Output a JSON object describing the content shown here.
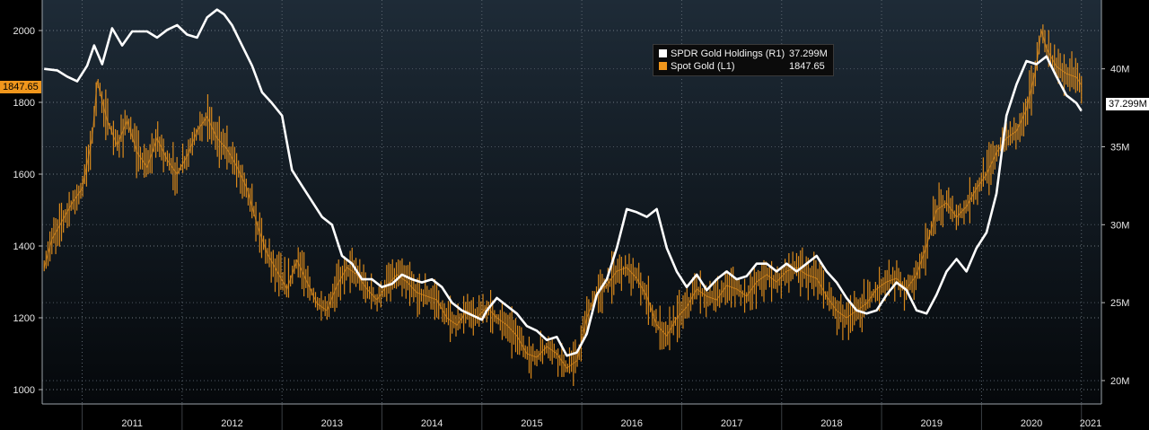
{
  "chart_data": {
    "type": "line",
    "x_range": [
      2010.6,
      2021.2
    ],
    "left_axis": {
      "series": "Spot Gold (L1)",
      "range": [
        960,
        2080
      ],
      "ticks": [
        "1000",
        "1200",
        "1400",
        "1600",
        "1800",
        "2000"
      ]
    },
    "right_axis": {
      "series": "SPDR Gold Holdings (R1)",
      "unit": "M",
      "range": [
        18.5,
        44.3
      ],
      "ticks": [
        "20M",
        "25M",
        "30M",
        "35M",
        "40M"
      ]
    },
    "x_ticks": [
      "2011",
      "2012",
      "2013",
      "2014",
      "2015",
      "2016",
      "2017",
      "2018",
      "2019",
      "2020",
      "2021"
    ],
    "grid": true,
    "legend_position": "top-center",
    "series": [
      {
        "name": "SPDR Gold Holdings (R1)",
        "color": "#ffffff",
        "axis": "right",
        "x": [
          2010.62,
          2010.75,
          2010.85,
          2010.95,
          2011.05,
          2011.12,
          2011.2,
          2011.3,
          2011.4,
          2011.5,
          2011.65,
          2011.75,
          2011.85,
          2011.95,
          2012.05,
          2012.15,
          2012.25,
          2012.35,
          2012.42,
          2012.5,
          2012.6,
          2012.7,
          2012.8,
          2012.9,
          2013.0,
          2013.1,
          2013.2,
          2013.3,
          2013.4,
          2013.5,
          2013.6,
          2013.7,
          2013.8,
          2013.9,
          2014.0,
          2014.1,
          2014.2,
          2014.3,
          2014.4,
          2014.5,
          2014.6,
          2014.7,
          2014.8,
          2014.9,
          2015.0,
          2015.05,
          2015.15,
          2015.25,
          2015.35,
          2015.45,
          2015.55,
          2015.65,
          2015.75,
          2015.85,
          2015.95,
          2016.05,
          2016.15,
          2016.25,
          2016.35,
          2016.45,
          2016.55,
          2016.65,
          2016.75,
          2016.85,
          2016.95,
          2017.05,
          2017.15,
          2017.25,
          2017.35,
          2017.45,
          2017.55,
          2017.65,
          2017.75,
          2017.85,
          2017.95,
          2018.05,
          2018.15,
          2018.25,
          2018.35,
          2018.45,
          2018.55,
          2018.65,
          2018.75,
          2018.85,
          2018.95,
          2019.05,
          2019.15,
          2019.25,
          2019.35,
          2019.45,
          2019.55,
          2019.65,
          2019.75,
          2019.85,
          2019.95,
          2020.05,
          2020.15,
          2020.25,
          2020.35,
          2020.45,
          2020.55,
          2020.65,
          2020.75,
          2020.85,
          2020.95,
          2021.0
        ],
        "y": [
          40.0,
          39.9,
          39.5,
          39.2,
          40.2,
          41.5,
          40.3,
          42.6,
          41.5,
          42.4,
          42.4,
          42.0,
          42.5,
          42.8,
          42.2,
          42.0,
          43.3,
          43.8,
          43.5,
          42.8,
          41.5,
          40.2,
          38.5,
          37.8,
          37.0,
          33.5,
          32.5,
          31.5,
          30.5,
          30.0,
          28.0,
          27.5,
          26.5,
          26.5,
          26.0,
          26.2,
          26.8,
          26.5,
          26.3,
          26.5,
          26.0,
          25.0,
          24.5,
          24.2,
          23.9,
          24.5,
          25.3,
          24.8,
          24.3,
          23.5,
          23.2,
          22.6,
          22.8,
          21.6,
          21.8,
          23.0,
          25.5,
          26.5,
          28.5,
          31.0,
          30.8,
          30.5,
          31.0,
          28.5,
          27.0,
          26.0,
          26.8,
          25.8,
          26.5,
          27.0,
          26.5,
          26.7,
          27.5,
          27.5,
          27.0,
          27.5,
          27.0,
          27.5,
          28.0,
          27.0,
          26.3,
          25.3,
          24.5,
          24.3,
          24.5,
          25.5,
          26.3,
          25.8,
          24.5,
          24.3,
          25.5,
          27.0,
          27.8,
          27.0,
          28.5,
          29.5,
          32.0,
          37.0,
          39.0,
          40.5,
          40.3,
          40.8,
          39.5,
          38.3,
          37.8,
          37.3
        ]
      },
      {
        "name": "Spot Gold (L1)",
        "color": "#f0961c",
        "axis": "left",
        "x": [
          2010.62,
          2010.7,
          2010.8,
          2010.9,
          2011.0,
          2011.1,
          2011.15,
          2011.25,
          2011.35,
          2011.45,
          2011.55,
          2011.65,
          2011.75,
          2011.85,
          2011.95,
          2012.05,
          2012.15,
          2012.25,
          2012.35,
          2012.45,
          2012.55,
          2012.65,
          2012.75,
          2012.85,
          2012.95,
          2013.05,
          2013.15,
          2013.25,
          2013.35,
          2013.45,
          2013.55,
          2013.65,
          2013.75,
          2013.85,
          2013.95,
          2014.05,
          2014.15,
          2014.25,
          2014.35,
          2014.45,
          2014.55,
          2014.65,
          2014.75,
          2014.85,
          2014.95,
          2015.05,
          2015.15,
          2015.25,
          2015.35,
          2015.45,
          2015.55,
          2015.65,
          2015.75,
          2015.85,
          2015.95,
          2016.05,
          2016.15,
          2016.25,
          2016.35,
          2016.45,
          2016.55,
          2016.65,
          2016.75,
          2016.85,
          2016.95,
          2017.05,
          2017.15,
          2017.25,
          2017.35,
          2017.45,
          2017.55,
          2017.65,
          2017.75,
          2017.85,
          2017.95,
          2018.05,
          2018.15,
          2018.25,
          2018.35,
          2018.45,
          2018.55,
          2018.65,
          2018.75,
          2018.85,
          2018.95,
          2019.05,
          2019.15,
          2019.25,
          2019.35,
          2019.45,
          2019.55,
          2019.65,
          2019.75,
          2019.85,
          2019.95,
          2020.05,
          2020.15,
          2020.25,
          2020.35,
          2020.45,
          2020.55,
          2020.6,
          2020.65,
          2020.75,
          2020.85,
          2020.95,
          2021.0
        ],
        "y": [
          1340,
          1420,
          1470,
          1520,
          1560,
          1700,
          1860,
          1750,
          1680,
          1750,
          1660,
          1620,
          1700,
          1640,
          1600,
          1650,
          1720,
          1760,
          1700,
          1670,
          1620,
          1560,
          1460,
          1380,
          1330,
          1280,
          1360,
          1300,
          1240,
          1220,
          1290,
          1340,
          1320,
          1280,
          1250,
          1290,
          1320,
          1300,
          1270,
          1260,
          1250,
          1200,
          1180,
          1220,
          1200,
          1230,
          1200,
          1180,
          1150,
          1100,
          1090,
          1120,
          1100,
          1060,
          1080,
          1200,
          1270,
          1290,
          1330,
          1340,
          1310,
          1260,
          1180,
          1150,
          1200,
          1230,
          1280,
          1260,
          1250,
          1290,
          1280,
          1260,
          1300,
          1320,
          1300,
          1330,
          1340,
          1320,
          1310,
          1260,
          1220,
          1200,
          1220,
          1240,
          1280,
          1300,
          1310,
          1280,
          1320,
          1400,
          1500,
          1520,
          1480,
          1510,
          1560,
          1600,
          1660,
          1700,
          1720,
          1780,
          1900,
          2000,
          1950,
          1900,
          1880,
          1870,
          1847.65
        ]
      }
    ]
  },
  "legend": {
    "series1_label": "SPDR Gold Holdings (R1)",
    "series1_value": "37.299M",
    "series2_label": "Spot Gold (L1)",
    "series2_value": "1847.65"
  },
  "last_values": {
    "left": "1847.65",
    "right": "37.299M"
  }
}
